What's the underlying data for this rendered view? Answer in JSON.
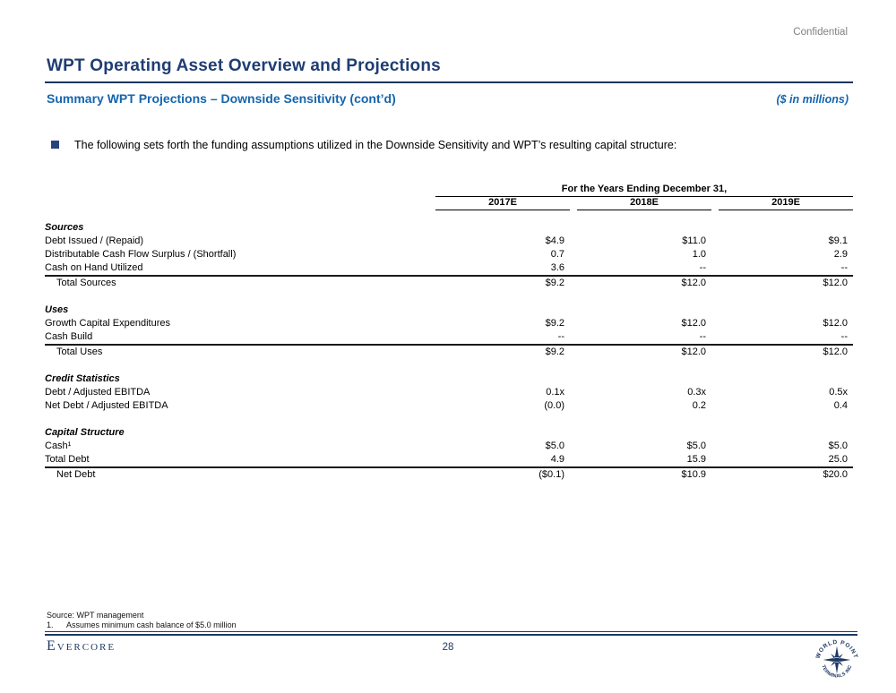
{
  "slide": {
    "confidential": "Confidential",
    "title": "WPT Operating Asset Overview and Projections",
    "subtitle": "Summary WPT Projections – Downside Sensitivity (cont’d)",
    "units_note": "($ in millions)",
    "bullet_text": "The following sets forth the funding assumptions utilized in the Downside Sensitivity and WPT’s resulting capital structure:"
  },
  "table": {
    "spanner": "For the Years Ending December 31,",
    "columns": [
      "2017E",
      "2018E",
      "2019E"
    ],
    "sections": [
      {
        "heading": "Sources",
        "rows": [
          {
            "label": "Debt Issued / (Repaid)",
            "values": [
              "$4.9",
              "$11.0",
              "$9.1"
            ]
          },
          {
            "label": "Distributable Cash Flow Surplus / (Shortfall)",
            "values": [
              "0.7",
              "1.0",
              "2.9"
            ]
          },
          {
            "label": "Cash on Hand Utilized",
            "values": [
              "3.6",
              "--",
              "--"
            ],
            "rule_below": true
          },
          {
            "label": "Total Sources",
            "values": [
              "$9.2",
              "$12.0",
              "$12.0"
            ],
            "total": true
          }
        ]
      },
      {
        "heading": "Uses",
        "rows": [
          {
            "label": "Growth Capital Expenditures",
            "values": [
              "$9.2",
              "$12.0",
              "$12.0"
            ]
          },
          {
            "label": "Cash Build",
            "values": [
              "--",
              "--",
              "--"
            ],
            "rule_below": true
          },
          {
            "label": "Total Uses",
            "values": [
              "$9.2",
              "$12.0",
              "$12.0"
            ],
            "total": true
          }
        ]
      },
      {
        "heading": "Credit Statistics",
        "rows": [
          {
            "label": "Debt / Adjusted EBITDA",
            "values": [
              "0.1x",
              "0.3x",
              "0.5x"
            ]
          },
          {
            "label": "Net Debt / Adjusted EBITDA",
            "values": [
              "(0.0)",
              "0.2",
              "0.4"
            ]
          }
        ]
      },
      {
        "heading": "Capital Structure",
        "rows": [
          {
            "label": "Cash¹",
            "values": [
              "$5.0",
              "$5.0",
              "$5.0"
            ]
          },
          {
            "label": "Total Debt",
            "values": [
              "4.9",
              "15.9",
              "25.0"
            ],
            "rule_below": true
          },
          {
            "label": "Net Debt",
            "values": [
              "($0.1)",
              "$10.9",
              "$20.0"
            ],
            "total": true
          }
        ]
      }
    ]
  },
  "footnotes": {
    "source": "Source: WPT management",
    "items": [
      {
        "marker": "1.",
        "text": "Assumes minimum cash balance of $5.0 million"
      }
    ]
  },
  "footer": {
    "brand": "Evercore",
    "page_number": "28"
  },
  "seal": {
    "top_text": "WORLD POINT",
    "bottom_text": "TERMINALS INC"
  },
  "colors": {
    "title_navy": "#1F3D73",
    "rule_navy": "#17365D",
    "subtitle_blue": "#1565AE",
    "footer_navy": "#1F3864",
    "confidential_gray": "#808080"
  }
}
